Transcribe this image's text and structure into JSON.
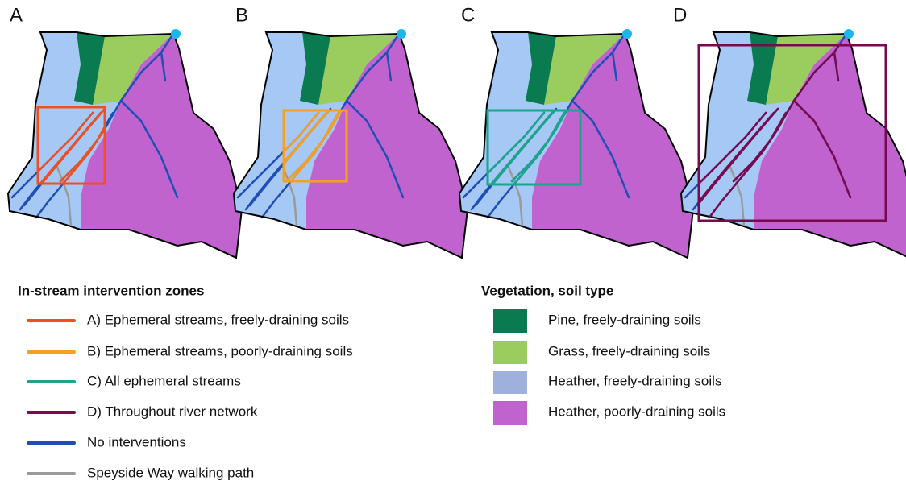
{
  "panels": [
    "A",
    "B",
    "C",
    "D"
  ],
  "legend_zones": {
    "title": "In-stream intervention zones",
    "items": [
      "A)  Ephemeral streams, freely-draining soils",
      "B)  Ephemeral streams, poorly-draining soils",
      "C)  All ephemeral streams",
      "D)  Throughout river network",
      "No interventions",
      "Speyside Way walking path"
    ]
  },
  "legend_vegetation": {
    "title": "Vegetation, soil type",
    "items": [
      "Pine, freely-draining soils",
      "Grass, freely-draining soils",
      "Heather, freely-draining soils",
      "Heather, poorly-draining soils"
    ]
  }
}
